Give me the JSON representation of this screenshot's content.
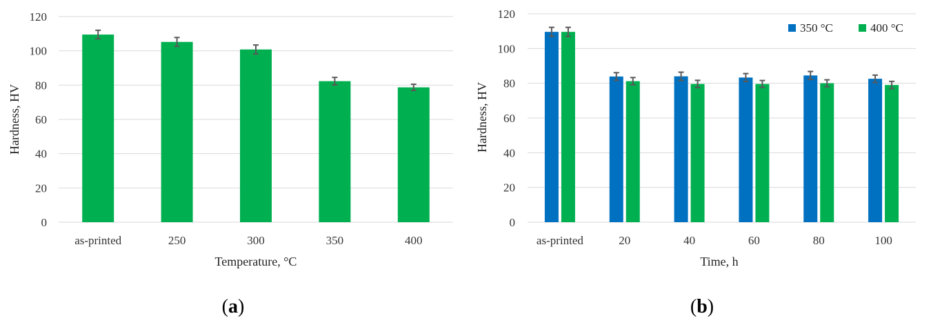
{
  "colors": {
    "series_350": "#0070C0",
    "series_400": "#00B050",
    "grid": "#D9D9D9",
    "error_bar": "#595959"
  },
  "chart_data": [
    {
      "type": "bar",
      "panel_label": "a",
      "categories": [
        "as-printed",
        "250",
        "300",
        "350",
        "400"
      ],
      "series": [
        {
          "values": [
            109.5,
            105.2,
            100.8,
            82.3,
            78.7
          ],
          "errors": [
            2.5,
            2.6,
            2.6,
            2.2,
            1.8
          ],
          "color": "#00B050"
        }
      ],
      "xlabel": "Temperature, °C",
      "ylabel": "Hardness, HV",
      "ylim": [
        0,
        120
      ],
      "yticks": [
        0,
        20,
        40,
        60,
        80,
        100,
        120
      ],
      "grid": true
    },
    {
      "type": "bar",
      "panel_label": "b",
      "categories": [
        "as-printed",
        "20",
        "40",
        "60",
        "80",
        "100"
      ],
      "series": [
        {
          "name": "350 °C",
          "values": [
            109.6,
            83.9,
            84.0,
            83.3,
            84.5,
            82.6
          ],
          "errors": [
            2.6,
            2.2,
            2.4,
            2.3,
            2.3,
            2.1
          ],
          "color": "#0070C0"
        },
        {
          "name": "400 °C",
          "values": [
            109.6,
            81.2,
            79.6,
            79.6,
            80.0,
            79.0
          ],
          "errors": [
            2.6,
            2.1,
            2.1,
            2.0,
            2.0,
            2.1
          ],
          "color": "#00B050"
        }
      ],
      "xlabel": "Time, h",
      "ylabel": "Hardness, HV",
      "ylim": [
        0,
        120
      ],
      "yticks": [
        0,
        20,
        40,
        60,
        80,
        100,
        120
      ],
      "legend": "top-right",
      "grid": true
    }
  ]
}
